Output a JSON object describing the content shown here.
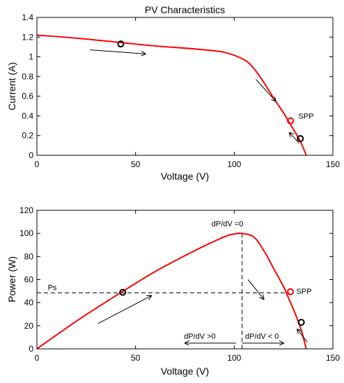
{
  "colors": {
    "curve": "#ff0000",
    "axis": "#000000",
    "marker_black": "#000000",
    "marker_red": "#ff0000"
  },
  "chart_data": [
    {
      "type": "line",
      "title": "PV Characteristics",
      "xlabel": "Voltage (V)",
      "ylabel": "Current (A)",
      "xlim": [
        0,
        150
      ],
      "ylim": [
        0,
        1.4
      ],
      "xticks": [
        0,
        50,
        100,
        150
      ],
      "yticks": [
        0,
        0.2,
        0.4,
        0.6,
        0.8,
        1,
        1.2,
        1.4
      ],
      "ytick_labels": [
        "0",
        "0.2",
        "0.4",
        "0.6",
        "0.8",
        "1",
        "1.2",
        "1.4"
      ],
      "grid": false,
      "series": [
        {
          "x": [
            0,
            20,
            40,
            60,
            80,
            95,
            105,
            110,
            115,
            120,
            125,
            128,
            131,
            134,
            136.5
          ],
          "y": [
            1.22,
            1.19,
            1.15,
            1.11,
            1.08,
            1.045,
            0.97,
            0.88,
            0.74,
            0.58,
            0.43,
            0.33,
            0.23,
            0.12,
            0.0
          ]
        }
      ],
      "markers": [
        {
          "x": 42.5,
          "y": 1.13,
          "color": "#000000"
        },
        {
          "x": 128.5,
          "y": 0.35,
          "color": "#ff0000"
        },
        {
          "x": 133.5,
          "y": 0.17,
          "color": "#000000"
        }
      ],
      "annotations": [
        {
          "text": "SPP",
          "x": 132.5,
          "y": 0.37
        }
      ],
      "arrows": [
        {
          "from": [
            27,
            1.07
          ],
          "to": [
            55,
            1.03
          ]
        },
        {
          "from": [
            111,
            0.77
          ],
          "to": [
            121,
            0.55
          ]
        },
        {
          "from": [
            133,
            0.12
          ],
          "to": [
            128,
            0.23
          ]
        }
      ]
    },
    {
      "type": "line",
      "title": "",
      "xlabel": "Voltage (V)",
      "ylabel": "Power (W)",
      "xlim": [
        0,
        150
      ],
      "ylim": [
        0,
        120
      ],
      "xticks": [
        0,
        50,
        100,
        150
      ],
      "yticks": [
        0,
        20,
        40,
        60,
        80,
        100,
        120
      ],
      "ytick_labels": [
        "0",
        "20",
        "40",
        "60",
        "80",
        "100",
        "120"
      ],
      "grid": false,
      "series": [
        {
          "x": [
            0,
            20,
            40,
            60,
            80,
            95,
            100,
            104,
            110,
            115,
            120,
            125,
            128,
            131,
            134,
            136.5
          ],
          "y": [
            0,
            24,
            46,
            67,
            85,
            97,
            99.5,
            100,
            96.8,
            85.1,
            69.6,
            53.8,
            42.2,
            30.1,
            16.1,
            0
          ]
        }
      ],
      "markers": [
        {
          "x": 43.5,
          "y": 49,
          "color": "#000000"
        },
        {
          "x": 128.5,
          "y": 49.5,
          "color": "#ff0000"
        },
        {
          "x": 134,
          "y": 23,
          "color": "#000000"
        }
      ],
      "guide_lines": [
        {
          "orientation": "vertical",
          "x": 104,
          "y_from": 0,
          "y_to": 100
        },
        {
          "orientation": "horizontal",
          "y": 48.5,
          "x_from": 0,
          "x_to": 128
        }
      ],
      "annotations": [
        {
          "text": "dP/dV =0",
          "x": 88.5,
          "y": 106
        },
        {
          "text": "Ps",
          "x": 5.5,
          "y": 51
        },
        {
          "text": "SPP",
          "x": 131.5,
          "y": 47.5
        },
        {
          "text": "dP/dV >0",
          "x": 74.5,
          "y": 8.8
        },
        {
          "text": "dP/dV < 0",
          "x": 105.5,
          "y": 8.8
        }
      ],
      "arrows": [
        {
          "from": [
            31,
            22
          ],
          "to": [
            58,
            46
          ]
        },
        {
          "from": [
            107,
            60
          ],
          "to": [
            115,
            43
          ]
        },
        {
          "from": [
            137,
            6
          ],
          "to": [
            132,
            17
          ]
        },
        {
          "from": [
            101,
            5
          ],
          "to": [
            75,
            5
          ]
        },
        {
          "from": [
            104,
            5
          ],
          "to": [
            125,
            5
          ]
        }
      ]
    }
  ]
}
